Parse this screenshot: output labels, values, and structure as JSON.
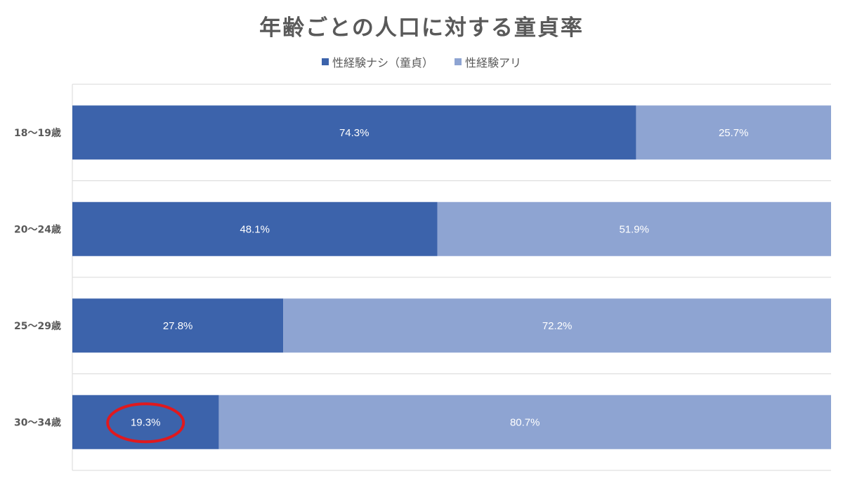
{
  "chart_data": {
    "type": "bar",
    "orientation": "horizontal",
    "stacked": true,
    "title": "年齢ごとの人口に対する童貞率",
    "categories": [
      "18〜19歳",
      "20〜24歳",
      "25〜29歳",
      "30〜34歳"
    ],
    "series": [
      {
        "name": "性経験ナシ（童貞）",
        "color": "#3c63ab",
        "values": [
          74.3,
          48.1,
          27.8,
          19.3
        ],
        "labels": [
          "74.3%",
          "48.1%",
          "27.8%",
          "19.3%"
        ]
      },
      {
        "name": "性経験アリ",
        "color": "#8ea4d2",
        "values": [
          25.7,
          51.9,
          72.2,
          80.7
        ],
        "labels": [
          "25.7%",
          "51.9%",
          "72.2%",
          "80.7%"
        ]
      }
    ],
    "xlim": [
      0,
      100
    ],
    "legend_position": "top",
    "grid": true,
    "highlight": {
      "category": "30〜34歳",
      "series": "性経験ナシ（童貞）",
      "shape": "ellipse",
      "color": "#e0191e"
    }
  }
}
